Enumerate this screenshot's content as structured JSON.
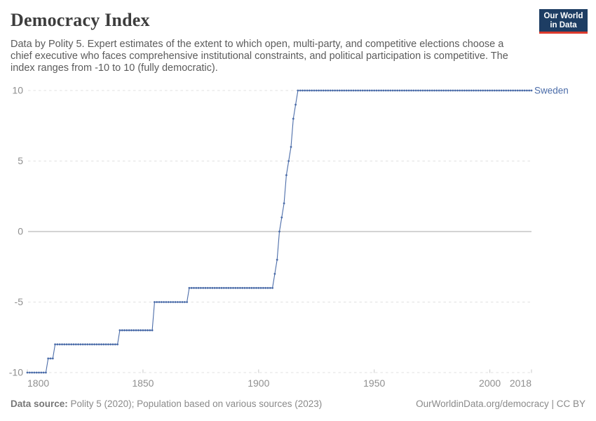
{
  "header": {
    "title": "Democracy Index",
    "subtitle_lines": [
      "Data by Polity 5. Expert estimates of the extent to which open, multi-party, and competitive elections choose a",
      "chief executive who faces comprehensive institutional constraints, and political participation is competitive. The",
      "index ranges from -10 to 10 (fully democratic)."
    ],
    "logo": {
      "line1": "Our World",
      "line2": "in Data",
      "bg_color": "#1d3d63",
      "accent_color": "#dc3a2d"
    }
  },
  "chart_data": {
    "type": "line",
    "entity": "Sweden",
    "series_label": "Sweden",
    "line_color": "#4c6da9",
    "x_range": [
      1800,
      2018
    ],
    "y_range": [
      -10,
      10
    ],
    "x_ticks": [
      1800,
      1850,
      1900,
      1950,
      2000,
      2018
    ],
    "y_ticks": [
      10,
      5,
      0,
      -5,
      -10
    ],
    "grid": "dashed horizontal gridlines, solid zero line, legend label at line end",
    "segments": [
      {
        "from": 1800,
        "to": 1808,
        "value": -10
      },
      {
        "from": 1809,
        "to": 1811,
        "value": -9
      },
      {
        "from": 1812,
        "to": 1839,
        "value": -8
      },
      {
        "from": 1840,
        "to": 1854,
        "value": -7
      },
      {
        "from": 1855,
        "to": 1869,
        "value": -5
      },
      {
        "from": 1870,
        "to": 1906,
        "value": -4
      },
      {
        "from": 1907,
        "to": 1907,
        "value": -3
      },
      {
        "from": 1908,
        "to": 1908,
        "value": -2
      },
      {
        "from": 1909,
        "to": 1909,
        "value": 0
      },
      {
        "from": 1910,
        "to": 1910,
        "value": 1
      },
      {
        "from": 1911,
        "to": 1911,
        "value": 2
      },
      {
        "from": 1912,
        "to": 1912,
        "value": 4
      },
      {
        "from": 1913,
        "to": 1913,
        "value": 5
      },
      {
        "from": 1914,
        "to": 1914,
        "value": 6
      },
      {
        "from": 1915,
        "to": 1915,
        "value": 8
      },
      {
        "from": 1916,
        "to": 1916,
        "value": 9
      },
      {
        "from": 1917,
        "to": 2018,
        "value": 10
      }
    ]
  },
  "footer": {
    "source_label": "Data source:",
    "source_text": " Polity 5 (2020); Population based on various sources (2023)",
    "credit": "OurWorldinData.org/democracy | CC BY"
  }
}
